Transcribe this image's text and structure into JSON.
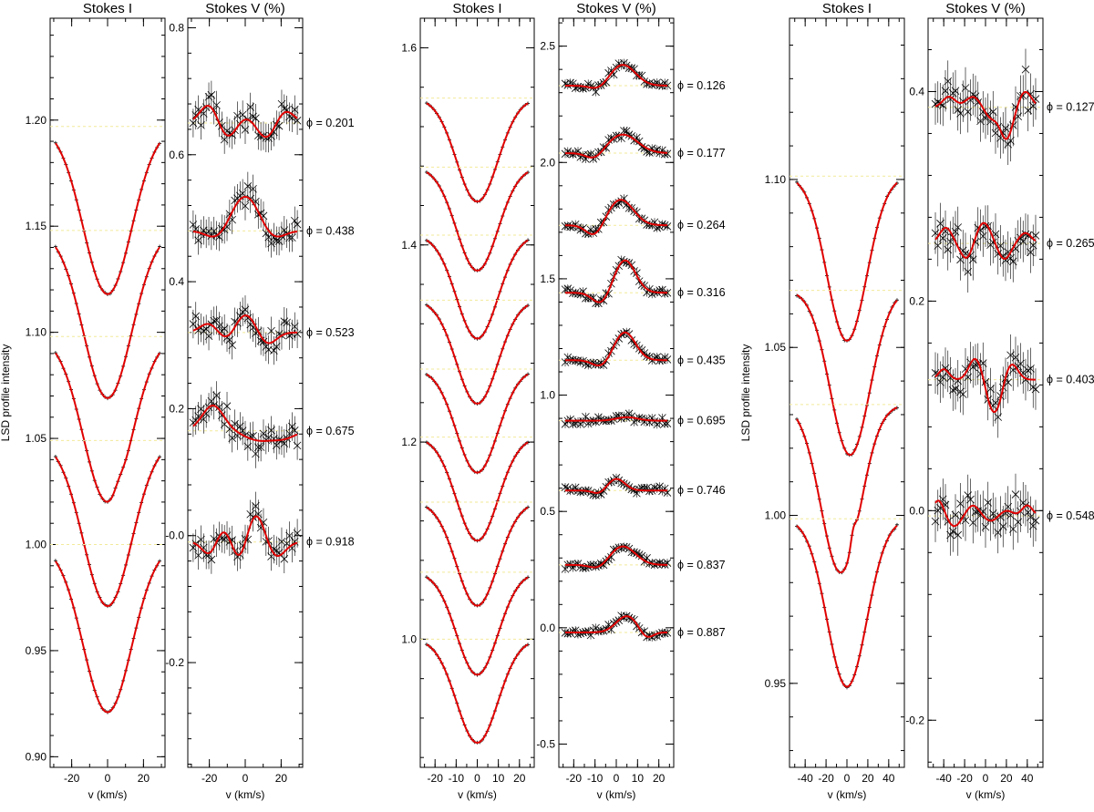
{
  "chart_data": [
    {
      "type": "line",
      "panel": "Stokes I",
      "title": "Stokes I",
      "xlabel": "v (km/s)",
      "ylabel": "LSD profile intensity",
      "xlim": [
        -32,
        32
      ],
      "ylim": [
        0.895,
        1.248
      ],
      "xticks": [
        -20,
        0,
        20
      ],
      "yticks": [
        0.9,
        0.95,
        1.0,
        1.05,
        1.1,
        1.15,
        1.2
      ],
      "ytick_labels": [
        "0.90",
        "0.95",
        "1.00",
        "1.05",
        "1.10",
        "1.15",
        "1.20"
      ],
      "halfwidth": 29,
      "profile": {
        "depth": 0.069,
        "sigma": 13.5
      },
      "series": [
        {
          "continuum": 1.197,
          "center": 1.118
        },
        {
          "continuum": 1.148,
          "center": 1.069
        },
        {
          "continuum": 1.098,
          "center": 1.02,
          "bump": 0.003
        },
        {
          "continuum": 1.049,
          "center": 0.971
        },
        {
          "continuum": 1.0,
          "center": 0.921
        }
      ]
    },
    {
      "type": "line",
      "panel": "Stokes V",
      "title": "Stokes V (%)",
      "xlabel": "v (km/s)",
      "xlim": [
        -32,
        32
      ],
      "ylim": [
        -0.365,
        0.815
      ],
      "xticks": [
        -20,
        0,
        20
      ],
      "yticks": [
        -0.2,
        0.0,
        0.2,
        0.4,
        0.6,
        0.8
      ],
      "ytick_labels": [
        "-0.2",
        "-0.0",
        "0.2",
        "0.4",
        "0.6",
        "0.8"
      ],
      "halfwidth": 29,
      "noise": 0.025,
      "series": [
        {
          "phase": "0.201",
          "offset": 0.65,
          "components": [
            [
              -20,
              0.03,
              5
            ],
            [
              -10,
              -0.025,
              5
            ],
            [
              0,
              0.01,
              5
            ],
            [
              12,
              -0.025,
              5
            ],
            [
              22,
              0.02,
              5
            ]
          ]
        },
        {
          "phase": "0.438",
          "offset": 0.48,
          "components": [
            [
              0,
              0.055,
              8
            ],
            [
              -15,
              -0.015,
              6
            ],
            [
              15,
              -0.015,
              6
            ]
          ]
        },
        {
          "phase": "0.523",
          "offset": 0.32,
          "components": [
            [
              -20,
              0.015,
              5
            ],
            [
              -10,
              -0.015,
              5
            ],
            [
              0,
              0.03,
              6
            ],
            [
              12,
              -0.02,
              5
            ]
          ]
        },
        {
          "phase": "0.675",
          "offset": 0.165,
          "components": [
            [
              -18,
              0.04,
              6
            ],
            [
              8,
              -0.015,
              8
            ],
            [
              22,
              -0.01,
              6
            ]
          ]
        },
        {
          "phase": "0.918",
          "offset": -0.01,
          "components": [
            [
              -20,
              -0.02,
              4
            ],
            [
              -12,
              0.02,
              4
            ],
            [
              -3,
              -0.03,
              4
            ],
            [
              6,
              0.045,
              5
            ],
            [
              17,
              -0.025,
              5
            ]
          ]
        }
      ]
    },
    {
      "type": "line",
      "panel": "Stokes I",
      "title": "Stokes I",
      "xlabel": "v (km/s)",
      "xlim": [
        -27,
        27
      ],
      "ylim": [
        0.87,
        1.63
      ],
      "xticks": [
        -20,
        -10,
        0,
        10,
        20
      ],
      "yticks": [
        1.0,
        1.2,
        1.4,
        1.6
      ],
      "ytick_labels": [
        "1.0",
        "1.2",
        "1.4",
        "1.6"
      ],
      "halfwidth": 24,
      "profile": {
        "depth": 0.105,
        "sigma": 9.8
      },
      "series": [
        {
          "continuum": 1.549,
          "center": 1.444
        },
        {
          "continuum": 1.479,
          "center": 1.374
        },
        {
          "continuum": 1.41,
          "center": 1.305
        },
        {
          "continuum": 1.344,
          "center": 1.239
        },
        {
          "continuum": 1.274,
          "center": 1.169
        },
        {
          "continuum": 1.205,
          "center": 1.1
        },
        {
          "continuum": 1.139,
          "center": 1.034
        },
        {
          "continuum": 1.068,
          "center": 0.964
        },
        {
          "continuum": 1.0,
          "center": 0.895
        }
      ]
    },
    {
      "type": "line",
      "panel": "Stokes V",
      "title": "Stokes V (%)",
      "xlabel": "v (km/s)",
      "xlim": [
        -27,
        27
      ],
      "ylim": [
        -0.6,
        2.62
      ],
      "xticks": [
        -20,
        -10,
        0,
        10,
        20
      ],
      "yticks": [
        -0.5,
        0.0,
        0.5,
        1.0,
        1.5,
        2.0,
        2.5
      ],
      "ytick_labels": [
        "-0.5",
        "0.0",
        "0.5",
        "1.0",
        "1.5",
        "2.0",
        "2.5"
      ],
      "halfwidth": 24,
      "noise": 0.02,
      "series": [
        {
          "phase": "0.126",
          "offset": 2.33,
          "components": [
            [
              3,
              0.09,
              6
            ],
            [
              -8,
              -0.02,
              4
            ]
          ]
        },
        {
          "phase": "0.177",
          "offset": 2.04,
          "components": [
            [
              3,
              0.08,
              7
            ],
            [
              -10,
              -0.03,
              4
            ]
          ]
        },
        {
          "phase": "0.264",
          "offset": 1.73,
          "components": [
            [
              2,
              0.11,
              6
            ],
            [
              -10,
              -0.05,
              4
            ]
          ]
        },
        {
          "phase": "0.316",
          "offset": 1.44,
          "components": [
            [
              4,
              0.14,
              5
            ],
            [
              -7,
              -0.05,
              4
            ]
          ]
        },
        {
          "phase": "0.435",
          "offset": 1.15,
          "components": [
            [
              4,
              0.12,
              5
            ],
            [
              -7,
              -0.03,
              4
            ]
          ]
        },
        {
          "phase": "0.695",
          "offset": 0.89,
          "components": [
            [
              5,
              0.015,
              5
            ]
          ]
        },
        {
          "phase": "0.746",
          "offset": 0.59,
          "components": [
            [
              0,
              0.05,
              4
            ],
            [
              -8,
              -0.015,
              3
            ]
          ]
        },
        {
          "phase": "0.837",
          "offset": 0.27,
          "components": [
            [
              3,
              0.08,
              6
            ],
            [
              -8,
              -0.02,
              4
            ]
          ]
        },
        {
          "phase": "0.887",
          "offset": -0.02,
          "components": [
            [
              5,
              0.07,
              5
            ],
            [
              14,
              -0.03,
              3
            ]
          ]
        }
      ]
    },
    {
      "type": "line",
      "panel": "Stokes I",
      "title": "Stokes I",
      "xlabel": "v (km/s)",
      "ylabel": "LSD profile intensity",
      "xlim": [
        -55,
        55
      ],
      "ylim": [
        0.925,
        1.148
      ],
      "xticks": [
        -40,
        -20,
        0,
        20,
        40
      ],
      "yticks": [
        0.95,
        1.0,
        1.05,
        1.1
      ],
      "ytick_labels": [
        "0.95",
        "1.00",
        "1.05",
        "1.10"
      ],
      "halfwidth": 48,
      "profile": {
        "depth": 0.05,
        "sigma": 19
      },
      "series": [
        {
          "continuum": 1.101,
          "center": 1.052
        },
        {
          "continuum": 1.067,
          "center": 1.018,
          "center_shift": 3
        },
        {
          "continuum": 1.033,
          "center": 0.983,
          "center_shift": -6,
          "bump": 0.004
        },
        {
          "continuum": 0.999,
          "center": 0.949
        }
      ]
    },
    {
      "type": "line",
      "panel": "Stokes V",
      "title": "Stokes V (%)",
      "xlabel": "v (km/s)",
      "xlim": [
        -55,
        55
      ],
      "ylim": [
        -0.245,
        0.47
      ],
      "xticks": [
        -40,
        -20,
        0,
        20,
        40
      ],
      "yticks": [
        -0.2,
        0.0,
        0.2,
        0.4
      ],
      "ytick_labels": [
        "-0.2",
        "0.0",
        "0.2",
        "0.4"
      ],
      "halfwidth": 48,
      "noise": 0.022,
      "series": [
        {
          "phase": "0.127",
          "offset": 0.385,
          "components": [
            [
              -35,
              0.01,
              6
            ],
            [
              -12,
              0.01,
              7
            ],
            [
              5,
              -0.01,
              6
            ],
            [
              20,
              -0.03,
              6
            ],
            [
              38,
              0.015,
              6
            ]
          ]
        },
        {
          "phase": "0.265",
          "offset": 0.255,
          "components": [
            [
              -38,
              0.015,
              6
            ],
            [
              -18,
              -0.015,
              6
            ],
            [
              -2,
              0.02,
              7
            ],
            [
              18,
              -0.015,
              6
            ],
            [
              38,
              0.01,
              6
            ]
          ]
        },
        {
          "phase": "0.403",
          "offset": 0.125,
          "components": [
            [
              -40,
              0.01,
              5
            ],
            [
              -10,
              0.02,
              6
            ],
            [
              5,
              -0.02,
              5
            ],
            [
              12,
              -0.02,
              5
            ],
            [
              25,
              0.015,
              6
            ]
          ]
        },
        {
          "phase": "0.548",
          "offset": -0.005,
          "components": [
            [
              -45,
              0.015,
              5
            ],
            [
              -30,
              -0.01,
              6
            ],
            [
              -12,
              0.01,
              6
            ],
            [
              5,
              -0.005,
              6
            ],
            [
              20,
              0.005,
              6
            ],
            [
              40,
              0.01,
              5
            ]
          ]
        }
      ]
    }
  ]
}
